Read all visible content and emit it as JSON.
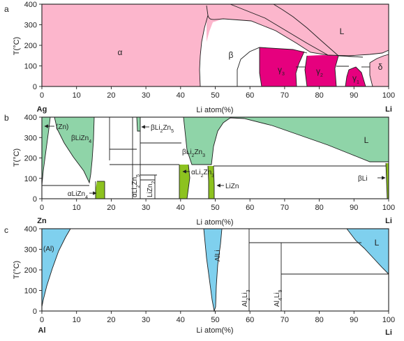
{
  "colors": {
    "pink": "#fcb6cc",
    "magenta": "#e6007e",
    "green": "#8fd4a8",
    "lime": "#8dc21f",
    "blue": "#7fd0ee"
  },
  "panels": [
    {
      "letter": "a",
      "y_axis_label": "T(°C)",
      "x_axis_label": "Li atom(%)",
      "y_ticks": [
        "0",
        "100",
        "200",
        "300",
        "400"
      ],
      "x_ticks": [
        "0",
        "10",
        "20",
        "30",
        "40",
        "50",
        "60",
        "70",
        "80",
        "90",
        "100"
      ],
      "left_element": "Ag",
      "right_element": "Li",
      "phase_labels": [
        "α",
        "β",
        "L",
        "γ3",
        "γ2",
        "γ1",
        "δ"
      ]
    },
    {
      "letter": "b",
      "y_axis_label": "T(°C)",
      "x_axis_label": "Li atom(%)",
      "y_ticks": [
        "0",
        "100",
        "200",
        "300",
        "400"
      ],
      "x_ticks": [
        "0",
        "10",
        "20",
        "30",
        "40",
        "50",
        "60",
        "70",
        "80",
        "90",
        "100"
      ],
      "left_element": "Zn",
      "right_element": "Li",
      "phase_labels": [
        "(Zn)",
        "βLiZn4",
        "βLi2Zn5",
        "βLi2Zn3",
        "αLi2Zn3",
        "LiZn",
        "αLiZn4",
        "αLi2Zn5",
        "LiZn2",
        "βLi",
        "L"
      ]
    },
    {
      "letter": "c",
      "y_axis_label": "T(°C)",
      "x_axis_label": "Li atom(%)",
      "y_ticks": [
        "0",
        "100",
        "200",
        "300",
        "400"
      ],
      "x_ticks": [
        "0",
        "10",
        "20",
        "30",
        "40",
        "50",
        "60",
        "70",
        "80",
        "90",
        "100"
      ],
      "left_element": "Al",
      "right_element": "Li",
      "phase_labels": [
        "(Al)",
        "AlLi",
        "Al2Li3",
        "Al4Li9",
        "L"
      ]
    }
  ]
}
